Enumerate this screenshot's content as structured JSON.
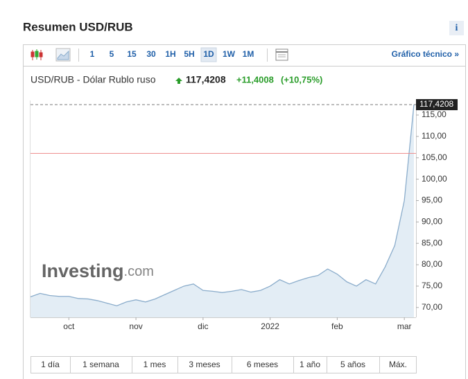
{
  "header": {
    "title": "Resumen USD/RUB",
    "info": "i"
  },
  "toolbar": {
    "intervals": [
      "1",
      "5",
      "15",
      "30",
      "1H",
      "5H",
      "1D",
      "1W",
      "1M"
    ],
    "selected_index": 6,
    "technical_link": "Gráfico técnico »"
  },
  "quote": {
    "name": "USD/RUB - Dólar Rublo ruso",
    "price": "117,4208",
    "change": "+11,4008",
    "change_pct": "(+10,75%)"
  },
  "chart_data": {
    "type": "area",
    "watermark": [
      "Investing",
      ".com"
    ],
    "categories": [
      null,
      null,
      null,
      null,
      "oct",
      null,
      null,
      null,
      null,
      null,
      null,
      "nov",
      null,
      null,
      null,
      null,
      null,
      null,
      "dic",
      null,
      null,
      null,
      null,
      null,
      null,
      "2022",
      null,
      null,
      null,
      null,
      null,
      null,
      "feb",
      null,
      null,
      null,
      null,
      null,
      null,
      "mar",
      null
    ],
    "series": [
      {
        "name": "USD/RUB",
        "color": "#8aaccb",
        "values": [
          72.5,
          73.3,
          72.8,
          72.6,
          72.6,
          72.1,
          72.0,
          71.6,
          71.0,
          70.4,
          71.3,
          71.8,
          71.3,
          72.0,
          73.0,
          74.0,
          75.0,
          75.5,
          74.0,
          73.8,
          73.5,
          73.8,
          74.2,
          73.6,
          74.0,
          75.0,
          76.5,
          75.5,
          76.3,
          77.0,
          77.5,
          79.0,
          77.8,
          76.0,
          75.0,
          76.5,
          75.5,
          79.5,
          84.5,
          95.0,
          117.4208
        ]
      }
    ],
    "last_price_label": "117,4208",
    "reference_line": 106.02,
    "ylim": [
      67.7,
      118.4
    ],
    "yticks": [
      {
        "value": 70,
        "label": "70,00"
      },
      {
        "value": 75,
        "label": "75,00"
      },
      {
        "value": 80,
        "label": "80,00"
      },
      {
        "value": 85,
        "label": "85,00"
      },
      {
        "value": 90,
        "label": "90,00"
      },
      {
        "value": 95,
        "label": "95,00"
      },
      {
        "value": 100,
        "label": "100,00"
      },
      {
        "value": 105,
        "label": "105,00"
      },
      {
        "value": 110,
        "label": "110,00"
      },
      {
        "value": 115,
        "label": "115,00"
      }
    ]
  },
  "ranges": [
    "1 día",
    "1 semana",
    "1 mes",
    "3 meses",
    "6 meses",
    "1 año",
    "5 años",
    "Máx."
  ]
}
